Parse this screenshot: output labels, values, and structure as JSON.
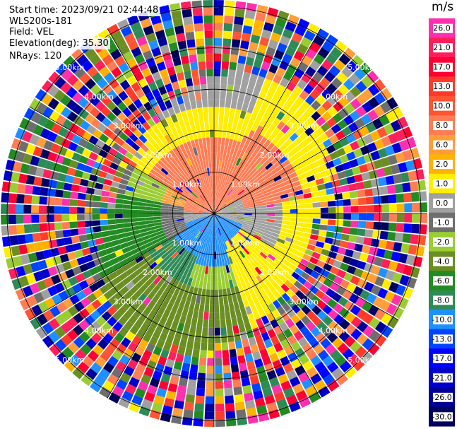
{
  "info": {
    "start_time": "Start time: 2023/09/21 02:44:48",
    "instrument": "WLS200s-181",
    "field": "Field: VEL",
    "elevation": "Elevation(deg): 35.30",
    "nrays": "NRays: 120"
  },
  "colorbar": {
    "unit": "m/s",
    "labels": [
      "26.0",
      "21.0",
      "17.0",
      "13.0",
      "10.0",
      "8.0",
      "6.0",
      "2.0",
      "1.0",
      "0.0",
      "-1.0",
      "-2.0",
      "-4.0",
      "-6.0",
      "-8.0",
      "-10.0",
      "-13.0",
      "-17.0",
      "-21.0",
      "-26.0",
      "-30.0"
    ],
    "colors": [
      "#ff2fae",
      "#ff1f5a",
      "#ff0033",
      "#ff3a2a",
      "#ff5533",
      "#ff7d55",
      "#ff9e3a",
      "#ffb200",
      "#ffee00",
      "#a0a0a0",
      "#6e6e6e",
      "#9acd32",
      "#6b8e23",
      "#228b22",
      "#2e8b57",
      "#1e90ff",
      "#0044ff",
      "#0000ff",
      "#0000cc",
      "#000099",
      "#00005e"
    ]
  },
  "rings": {
    "labels": [
      "1.00km",
      "2.00km",
      "3.00km",
      "4.00km",
      "5.00km"
    ]
  }
}
